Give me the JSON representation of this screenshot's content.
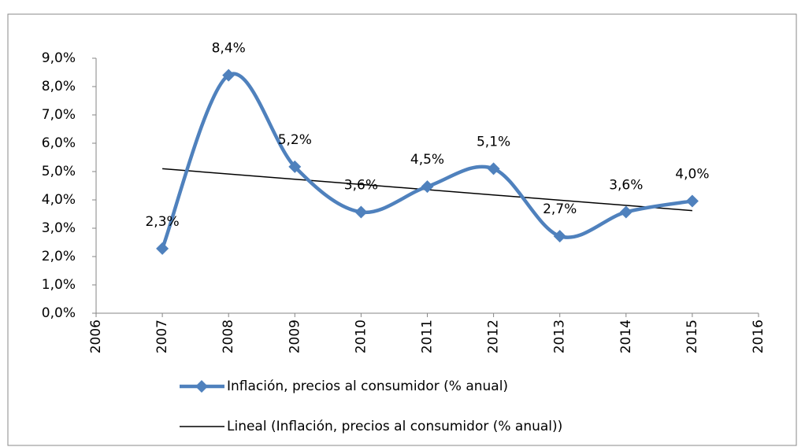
{
  "chart_data": {
    "type": "line",
    "x": [
      2007,
      2008,
      2009,
      2010,
      2011,
      2012,
      2013,
      2014,
      2015
    ],
    "series": [
      {
        "name": "Inflación, precios al consumidor (% anual)",
        "color": "#4f81bd",
        "values": [
          2.28,
          8.4,
          5.17,
          3.57,
          4.47,
          5.1,
          2.72,
          3.57,
          3.96
        ],
        "value_labels": [
          "2,3%",
          "8,4%",
          "5,2%",
          "3,6%",
          "4,5%",
          "5,1%",
          "2,7%",
          "3,6%",
          "4,0%"
        ]
      }
    ],
    "trendline": {
      "name": "Lineal (Inflación, precios al consumidor (% anual))",
      "color": "#000000",
      "x": [
        2007,
        2015
      ],
      "values": [
        5.1,
        3.62
      ]
    },
    "xlim": [
      2006,
      2016
    ],
    "xticks": [
      2006,
      2007,
      2008,
      2009,
      2010,
      2011,
      2012,
      2013,
      2014,
      2015,
      2016
    ],
    "ylim": [
      0,
      9
    ],
    "yticks": [
      {
        "value": 0,
        "label": "0,0%"
      },
      {
        "value": 1,
        "label": "1,0%"
      },
      {
        "value": 2,
        "label": "2,0%"
      },
      {
        "value": 3,
        "label": "3,0%"
      },
      {
        "value": 4,
        "label": "4,0%"
      },
      {
        "value": 5,
        "label": "5,0%"
      },
      {
        "value": 6,
        "label": "6,0%"
      },
      {
        "value": 7,
        "label": "7,0%"
      },
      {
        "value": 8,
        "label": "8,0%"
      },
      {
        "value": 9,
        "label": "9,0%"
      }
    ],
    "smooth": true,
    "grid": false,
    "legend": "bottom"
  }
}
